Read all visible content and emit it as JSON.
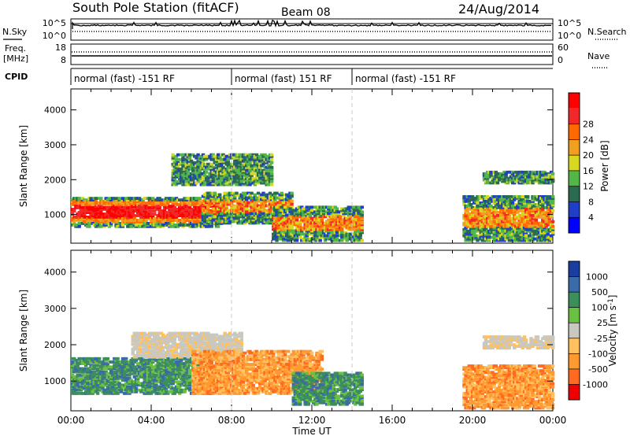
{
  "header": {
    "station": "South Pole Station (fitACF)",
    "beam": "Beam 08",
    "date": "24/Aug/2014"
  },
  "sky_panel": {
    "left_label": "N.Sky",
    "right_label": "N.Search",
    "ticks_left": [
      "10^5",
      "10^0"
    ],
    "ticks_right": [
      "10^5",
      "10^0"
    ]
  },
  "freq_panel": {
    "left_label_1": "Freq.",
    "left_label_2": "[MHz]",
    "ticks_left": [
      "18",
      "8"
    ],
    "right_label": "Nave",
    "ticks_right": [
      "60",
      "0"
    ]
  },
  "cpid_panel": {
    "label": "CPID",
    "segments": [
      {
        "label": "normal (fast) -151 RF",
        "start_hour": 0,
        "end_hour": 8
      },
      {
        "label": "normal (fast) 151 RF",
        "start_hour": 8,
        "end_hour": 14
      },
      {
        "label": "normal (fast) -151 RF",
        "start_hour": 14,
        "end_hour": 24
      }
    ]
  },
  "x_axis": {
    "title": "Time UT",
    "ticks": [
      "00:00",
      "04:00",
      "08:00",
      "12:00",
      "16:00",
      "20:00",
      "00:00"
    ]
  },
  "chart_data": [
    {
      "type": "heatmap",
      "title": "",
      "ylabel": "Slant Range [km]",
      "ylim": [
        180,
        4600
      ],
      "yticks": [
        1000,
        2000,
        3000,
        4000
      ],
      "xlim": [
        0,
        24
      ],
      "colorbar": {
        "title": "Power [dB]",
        "ticks": [
          "4",
          "8",
          "12",
          "16",
          "20",
          "24",
          "28"
        ],
        "colors": [
          "#0000ff",
          "#1f3fc8",
          "#2a6a50",
          "#52b648",
          "#d8d820",
          "#f0a020",
          "#ff6a00",
          "#f02828",
          "#ff0000"
        ]
      },
      "regions": [
        {
          "t0": 0.0,
          "t1": 7.5,
          "r0": 700,
          "r1": 1550,
          "level": "high"
        },
        {
          "t0": 6.5,
          "t1": 11.0,
          "r0": 800,
          "r1": 1700,
          "level": "medium"
        },
        {
          "t0": 5.0,
          "t1": 10.0,
          "r0": 1900,
          "r1": 2800,
          "level": "low"
        },
        {
          "t0": 10.0,
          "t1": 14.5,
          "r0": 300,
          "r1": 1300,
          "level": "medium"
        },
        {
          "t0": 19.5,
          "t1": 24.0,
          "r0": 300,
          "r1": 1600,
          "level": "medium"
        },
        {
          "t0": 20.5,
          "t1": 24.0,
          "r0": 1950,
          "r1": 2300,
          "level": "low"
        }
      ]
    },
    {
      "type": "heatmap",
      "title": "",
      "ylabel": "Slant Range [km]",
      "ylim": [
        180,
        4600
      ],
      "yticks": [
        1000,
        2000,
        3000,
        4000
      ],
      "xlim": [
        0,
        24
      ],
      "colorbar": {
        "title": "Velocity [m s^-1]",
        "ticks": [
          "1000",
          "500",
          "100",
          "25",
          "-25",
          "-100",
          "-500",
          "-1000"
        ],
        "colors": [
          "#1a3da0",
          "#3a6aa8",
          "#3c8e5a",
          "#6ac040",
          "#c8c8c0",
          "#ffc060",
          "#ff9a30",
          "#ff6a20",
          "#ee0000"
        ]
      },
      "regions": [
        {
          "t0": 0.0,
          "t1": 7.0,
          "r0": 700,
          "r1": 1700,
          "level": "green"
        },
        {
          "t0": 3.0,
          "t1": 8.5,
          "r0": 1700,
          "r1": 2400,
          "level": "gray"
        },
        {
          "t0": 6.0,
          "t1": 12.5,
          "r0": 700,
          "r1": 1900,
          "level": "orange"
        },
        {
          "t0": 11.0,
          "t1": 14.5,
          "r0": 400,
          "r1": 1300,
          "level": "green"
        },
        {
          "t0": 19.5,
          "t1": 24.0,
          "r0": 300,
          "r1": 1500,
          "level": "orange"
        },
        {
          "t0": 20.5,
          "t1": 24.0,
          "r0": 1950,
          "r1": 2300,
          "level": "gray"
        }
      ]
    }
  ]
}
